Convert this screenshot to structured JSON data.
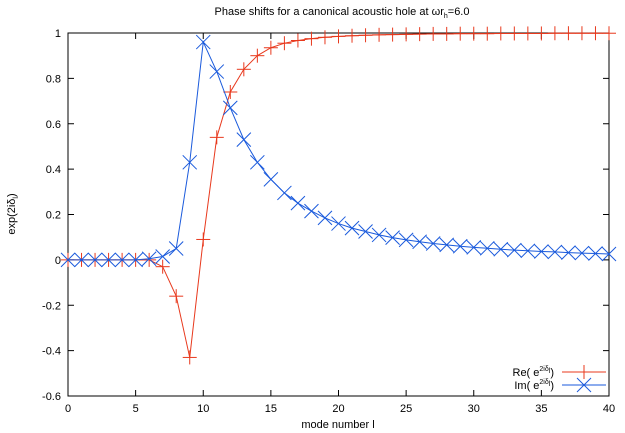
{
  "chart_data": {
    "type": "line",
    "title": {
      "prefix": "Phase shifts for a canonical acoustic hole at ",
      "omega": "ω",
      "r": "r",
      "r_sub": "h",
      "suffix": "=6.0"
    },
    "xlabel": "mode number l",
    "ylabel": "exp(2iδ",
    "ylabel_sub": "l",
    "ylabel_close": ")",
    "xlim": [
      0,
      40
    ],
    "ylim": [
      -0.6,
      1.0
    ],
    "x_ticks": [
      0,
      5,
      10,
      15,
      20,
      25,
      30,
      35,
      40
    ],
    "y_ticks": [
      -0.6,
      -0.4,
      -0.2,
      0,
      0.2,
      0.4,
      0.6,
      0.8,
      1
    ],
    "y_tick_labels": [
      "-0.6",
      "-0.4",
      "-0.2",
      "0",
      "0.2",
      "0.4",
      "0.6",
      "0.8",
      "1"
    ],
    "grid": false,
    "legend_position": "bottom-right",
    "x": [
      0,
      1,
      2,
      3,
      4,
      5,
      6,
      7,
      8,
      9,
      10,
      11,
      12,
      13,
      14,
      15,
      16,
      17,
      18,
      19,
      20,
      21,
      22,
      23,
      24,
      25,
      26,
      27,
      28,
      29,
      30,
      31,
      32,
      33,
      34,
      35,
      36,
      37,
      38,
      39,
      40
    ],
    "series": [
      {
        "label_prefix": "Re( e",
        "label_sup": "2iδ",
        "label_sup_sub": "l",
        "label_suffix": ")",
        "color": "#e8381c",
        "marker": "plus",
        "values": [
          0.0,
          0.0,
          0.0,
          0.0,
          0.0,
          0.0,
          0.0,
          -0.03,
          -0.16,
          -0.43,
          0.09,
          0.54,
          0.74,
          0.84,
          0.9,
          0.935,
          0.955,
          0.967,
          0.975,
          0.981,
          0.985,
          0.988,
          0.99,
          0.992,
          0.993,
          0.994,
          0.995,
          0.996,
          0.996,
          0.997,
          0.997,
          0.997,
          0.998,
          0.998,
          0.998,
          0.998,
          0.999,
          0.999,
          0.999,
          0.999,
          0.999
        ]
      },
      {
        "label_prefix": "Im( e",
        "label_sup": "2iδ",
        "label_sup_sub": "l",
        "label_suffix": ")",
        "color": "#1a5adc",
        "marker": "x",
        "values": [
          0.0,
          0.0,
          0.0,
          0.0,
          0.0,
          0.0,
          0.005,
          0.015,
          0.05,
          0.43,
          0.96,
          0.83,
          0.67,
          0.53,
          0.43,
          0.355,
          0.295,
          0.25,
          0.215,
          0.185,
          0.16,
          0.14,
          0.125,
          0.11,
          0.098,
          0.088,
          0.08,
          0.072,
          0.066,
          0.06,
          0.055,
          0.051,
          0.047,
          0.043,
          0.04,
          0.037,
          0.035,
          0.032,
          0.03,
          0.028,
          0.026
        ]
      }
    ]
  }
}
